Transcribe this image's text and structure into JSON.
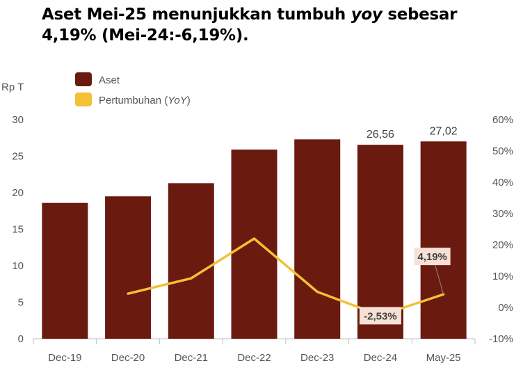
{
  "title": {
    "part1": "Aset Mei-25 menunjukkan tumbuh ",
    "italic": "yoy",
    "part2": " sebesar 4,19% (Mei-24:-6,19%)."
  },
  "colors": {
    "bar": "#6b1a10",
    "line": "#f2c135",
    "axis": "#bfbfbf",
    "callout_bg": "#f7e1d6"
  },
  "chart_data": {
    "type": "bar",
    "categories": [
      "Dec-19",
      "Dec-20",
      "Dec-21",
      "Dec-22",
      "Dec-23",
      "Dec-24",
      "May-25"
    ],
    "series": [
      {
        "name": "Aset",
        "axis": "left",
        "type": "bar",
        "values": [
          18.6,
          19.5,
          21.3,
          25.9,
          27.3,
          26.56,
          27.02
        ],
        "labels": [
          null,
          null,
          null,
          null,
          null,
          "26,56",
          "27,02"
        ]
      },
      {
        "name": "Pertumbuhan (YoY)",
        "name_plain": "Pertumbuhan (",
        "name_italic": "YoY",
        "name_close": ")",
        "axis": "right",
        "type": "line",
        "values": [
          null,
          4.4,
          9.3,
          22.0,
          5.0,
          -2.53,
          4.19
        ],
        "labels": [
          null,
          null,
          null,
          null,
          null,
          "-2,53%",
          "4,19%"
        ]
      }
    ],
    "ylabel_left": "Rp T",
    "ylim_left": [
      0,
      30
    ],
    "yticks_left": [
      "0",
      "5",
      "10",
      "15",
      "20",
      "25",
      "30"
    ],
    "ylim_right": [
      -10,
      60
    ],
    "yticks_right": [
      "-10%",
      "0%",
      "10%",
      "20%",
      "30%",
      "40%",
      "50%",
      "60%"
    ],
    "legend": {
      "position": "top-left",
      "entries": [
        "Aset",
        "Pertumbuhan (YoY)"
      ]
    }
  }
}
